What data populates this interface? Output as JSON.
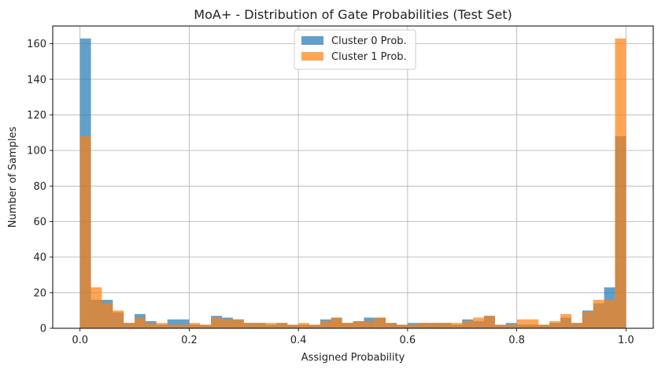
{
  "chart_data": {
    "type": "bar",
    "title": "MoA+ - Distribution of Gate Probabilities (Test Set)",
    "xlabel": "Assigned Probability",
    "ylabel": "Number of Samples",
    "xlim": [
      -0.05,
      1.05
    ],
    "ylim": [
      0,
      170
    ],
    "grid": true,
    "legend_position": "top-center",
    "bin_width": 0.02,
    "x_ticks": [
      0.0,
      0.2,
      0.4,
      0.6,
      0.8,
      1.0
    ],
    "x_tick_labels": [
      "0.0",
      "0.2",
      "0.4",
      "0.6",
      "0.8",
      "1.0"
    ],
    "y_ticks": [
      0,
      20,
      40,
      60,
      80,
      100,
      120,
      140,
      160
    ],
    "y_tick_labels": [
      "0",
      "20",
      "40",
      "60",
      "80",
      "100",
      "120",
      "140",
      "160"
    ],
    "bin_starts": [
      0.0,
      0.02,
      0.04,
      0.06,
      0.08,
      0.1,
      0.12,
      0.14,
      0.16,
      0.18,
      0.2,
      0.22,
      0.24,
      0.26,
      0.28,
      0.3,
      0.32,
      0.34,
      0.36,
      0.38,
      0.4,
      0.42,
      0.44,
      0.46,
      0.48,
      0.5,
      0.52,
      0.54,
      0.56,
      0.58,
      0.6,
      0.62,
      0.64,
      0.66,
      0.68,
      0.7,
      0.72,
      0.74,
      0.76,
      0.78,
      0.8,
      0.82,
      0.84,
      0.86,
      0.88,
      0.9,
      0.92,
      0.94,
      0.96,
      0.98
    ],
    "series": [
      {
        "name": "Cluster 0 Prob.",
        "color": "#1f77b4",
        "values": [
          163,
          16,
          16,
          9,
          3,
          8,
          4,
          2,
          5,
          5,
          2,
          2,
          7,
          6,
          5,
          3,
          3,
          2,
          3,
          2,
          2,
          2,
          5,
          6,
          3,
          4,
          6,
          6,
          3,
          2,
          3,
          3,
          3,
          3,
          2,
          5,
          4,
          7,
          2,
          3,
          2,
          2,
          2,
          3,
          6,
          3,
          10,
          14,
          23,
          108
        ]
      },
      {
        "name": "Cluster 1 Prob.",
        "color": "#ff7f0e",
        "values": [
          108,
          23,
          14,
          10,
          3,
          6,
          3,
          3,
          2,
          2,
          3,
          2,
          6,
          5,
          5,
          3,
          3,
          3,
          3,
          2,
          3,
          2,
          4,
          6,
          3,
          4,
          4,
          6,
          3,
          2,
          2,
          3,
          3,
          3,
          3,
          4,
          6,
          7,
          2,
          2,
          5,
          5,
          2,
          4,
          8,
          3,
          9,
          16,
          16,
          163
        ]
      }
    ]
  }
}
